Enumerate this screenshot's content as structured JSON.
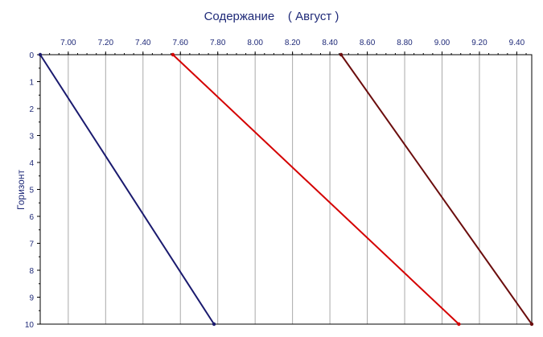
{
  "chart_data": {
    "type": "line",
    "title": "Содержание    ( Август )",
    "xlabel": "",
    "ylabel": "Горизонт",
    "xlim": [
      6.85,
      9.48
    ],
    "ylim": [
      0,
      10
    ],
    "x_axis_position": "top",
    "y_axis_inverted": true,
    "grid": true,
    "x_ticks": [
      "7.00",
      "7.20",
      "7.40",
      "7.60",
      "7.80",
      "8.00",
      "8.20",
      "8.40",
      "8.60",
      "8.80",
      "9.00",
      "9.20",
      "9.40"
    ],
    "y_ticks": [
      "0",
      "1",
      "2",
      "3",
      "4",
      "5",
      "6",
      "7",
      "8",
      "9",
      "10"
    ],
    "series": [
      {
        "color": "#1a1a6e",
        "points": [
          {
            "x": 6.85,
            "y": 0
          },
          {
            "x": 7.78,
            "y": 10
          }
        ]
      },
      {
        "color": "#d40000",
        "points": [
          {
            "x": 7.56,
            "y": 0
          },
          {
            "x": 9.09,
            "y": 10
          }
        ]
      },
      {
        "color": "#6b0d0d",
        "points": [
          {
            "x": 8.46,
            "y": 0
          },
          {
            "x": 9.48,
            "y": 10
          }
        ]
      }
    ]
  }
}
